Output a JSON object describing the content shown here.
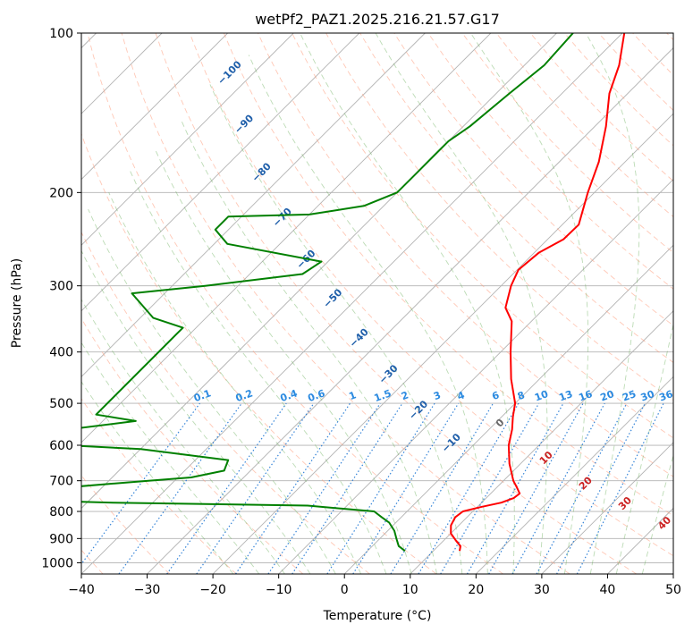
{
  "chart_data": {
    "type": "line",
    "subtype": "skew-T log-P sounding",
    "title": "wetPf2_PAZ1.2025.216.21.57.G17",
    "xlabel": "Temperature (°C)",
    "ylabel": "Pressure (hPa)",
    "xlim": [
      -40,
      50
    ],
    "ylim": [
      1050,
      100
    ],
    "y_scale": "log",
    "x_ticks": [
      "−40",
      "−30",
      "−20",
      "−10",
      "0",
      "10",
      "20",
      "30",
      "40",
      "50"
    ],
    "y_ticks": [
      "100",
      "200",
      "300",
      "400",
      "500",
      "600",
      "700",
      "800",
      "900",
      "1000"
    ],
    "grid": true,
    "series": [
      {
        "color": "#ff0000",
        "points": [
          {
            "p": 950,
            "t": 14.0
          },
          {
            "p": 930,
            "t": 13.4
          },
          {
            "p": 910,
            "t": 12.0
          },
          {
            "p": 880,
            "t": 10.0
          },
          {
            "p": 850,
            "t": 8.8
          },
          {
            "p": 820,
            "t": 8.2
          },
          {
            "p": 800,
            "t": 8.5
          },
          {
            "p": 785,
            "t": 10.5
          },
          {
            "p": 770,
            "t": 13.0
          },
          {
            "p": 755,
            "t": 14.2
          },
          {
            "p": 740,
            "t": 14.4
          },
          {
            "p": 720,
            "t": 13.0
          },
          {
            "p": 700,
            "t": 11.5
          },
          {
            "p": 650,
            "t": 8.3
          },
          {
            "p": 600,
            "t": 5.4
          },
          {
            "p": 560,
            "t": 3.5
          },
          {
            "p": 530,
            "t": 1.7
          },
          {
            "p": 500,
            "t": 0.0
          },
          {
            "p": 450,
            "t": -4.3
          },
          {
            "p": 400,
            "t": -8.5
          },
          {
            "p": 350,
            "t": -13.0
          },
          {
            "p": 330,
            "t": -16.0
          },
          {
            "p": 300,
            "t": -18.5
          },
          {
            "p": 280,
            "t": -19.8
          },
          {
            "p": 260,
            "t": -19.3
          },
          {
            "p": 245,
            "t": -17.6
          },
          {
            "p": 230,
            "t": -17.5
          },
          {
            "p": 200,
            "t": -21.0
          },
          {
            "p": 175,
            "t": -24.0
          },
          {
            "p": 150,
            "t": -28.3
          },
          {
            "p": 130,
            "t": -32.8
          },
          {
            "p": 115,
            "t": -35.6
          },
          {
            "p": 100,
            "t": -39.7
          }
        ]
      },
      {
        "color": "#008000",
        "points": [
          {
            "p": 950,
            "t": 5.7
          },
          {
            "p": 930,
            "t": 4.0
          },
          {
            "p": 900,
            "t": 2.5
          },
          {
            "p": 870,
            "t": 1.0
          },
          {
            "p": 840,
            "t": -1.0
          },
          {
            "p": 820,
            "t": -3.0
          },
          {
            "p": 800,
            "t": -5.0
          },
          {
            "p": 780,
            "t": -16.0
          },
          {
            "p": 770,
            "t": -46.0
          },
          {
            "p": 760,
            "t": -65.0
          },
          {
            "p": 750,
            "t": -68.0
          },
          {
            "p": 740,
            "t": -66.0
          },
          {
            "p": 730,
            "t": -70.0
          },
          {
            "p": 720,
            "t": -55.0
          },
          {
            "p": 700,
            "t": -44.0
          },
          {
            "p": 690,
            "t": -38.0
          },
          {
            "p": 670,
            "t": -34.0
          },
          {
            "p": 640,
            "t": -35.0
          },
          {
            "p": 610,
            "t": -50.0
          },
          {
            "p": 600,
            "t": -62.0
          },
          {
            "p": 560,
            "t": -64.0
          },
          {
            "p": 540,
            "t": -55.0
          },
          {
            "p": 525,
            "t": -62.0
          },
          {
            "p": 370,
            "t": -62.0
          },
          {
            "p": 360,
            "t": -62.0
          },
          {
            "p": 345,
            "t": -68.0
          },
          {
            "p": 310,
            "t": -75.0
          },
          {
            "p": 300,
            "t": -65.0
          },
          {
            "p": 285,
            "t": -52.0
          },
          {
            "p": 270,
            "t": -51.0
          },
          {
            "p": 250,
            "t": -68.0
          },
          {
            "p": 235,
            "t": -72.0
          },
          {
            "p": 222,
            "t": -72.0
          },
          {
            "p": 220,
            "t": -60.0
          },
          {
            "p": 212,
            "t": -53.0
          },
          {
            "p": 200,
            "t": -50.0
          },
          {
            "p": 185,
            "t": -50.0
          },
          {
            "p": 170,
            "t": -50.0
          },
          {
            "p": 160,
            "t": -50.0
          },
          {
            "p": 150,
            "t": -49.0
          },
          {
            "p": 130,
            "t": -48.0
          },
          {
            "p": 115,
            "t": -47.0
          },
          {
            "p": 100,
            "t": -47.5
          }
        ]
      }
    ],
    "dry_adiabat_labels": [
      "−100",
      "−90",
      "−80",
      "−70",
      "−60",
      "−50",
      "−40",
      "−30",
      "−20",
      "−10"
    ],
    "mixing_ratio_labels": [
      "0.1",
      "0.2",
      "0.4",
      "0.6",
      "1",
      "1.5",
      "2",
      "3",
      "4",
      "6",
      "8",
      "10",
      "13",
      "16",
      "20",
      "25",
      "30",
      "36"
    ],
    "moist_adiabat_labels": [
      "0",
      "10",
      "20",
      "30",
      "40"
    ]
  }
}
